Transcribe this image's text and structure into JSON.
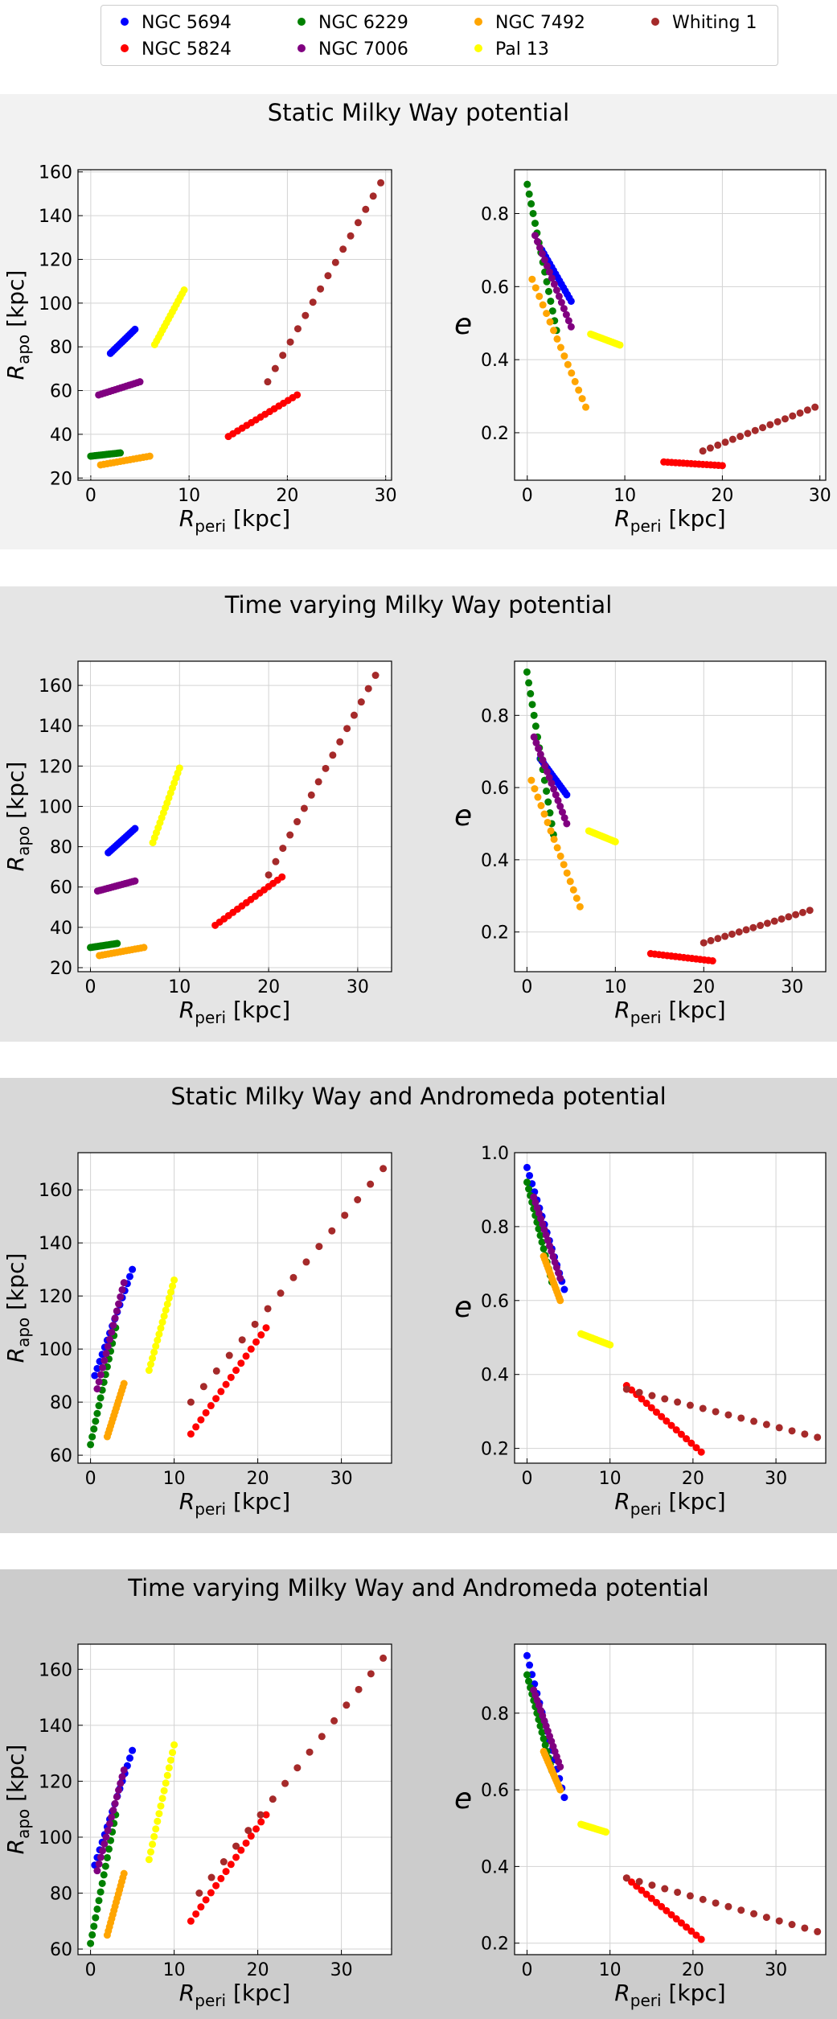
{
  "legend": [
    {
      "label": "NGC 5694",
      "color": "#0000ff"
    },
    {
      "label": "NGC 5824",
      "color": "#ff0000"
    },
    {
      "label": "NGC 6229",
      "color": "#008000"
    },
    {
      "label": "NGC 7006",
      "color": "#800080"
    },
    {
      "label": "NGC 7492",
      "color": "#ffa500"
    },
    {
      "label": "Pal 13",
      "color": "#ffff00"
    },
    {
      "label": "Whiting 1",
      "color": "#a52a2a"
    }
  ],
  "axis_labels": {
    "xlabel": "R_peri [kpc]",
    "ylabel_left": "R_apo [kpc]",
    "ylabel_right": "e"
  },
  "chart_data": [
    {
      "title": "Static Milky Way potential",
      "panel_bg": "#f2f2f2",
      "type": "scatter",
      "left": {
        "xlim": [
          -1.3,
          30.6
        ],
        "ylim": [
          19,
          161
        ],
        "xticks": [
          0,
          10,
          20,
          30
        ],
        "yticks": [
          20,
          40,
          60,
          80,
          100,
          120,
          140,
          160
        ],
        "series": {
          "NGC 5694": {
            "x": [
              2,
              4.5
            ],
            "y": [
              77,
              88
            ]
          },
          "NGC 5824": {
            "x": [
              14,
              21
            ],
            "y": [
              39,
              58
            ]
          },
          "NGC 6229": {
            "x": [
              0,
              3
            ],
            "y": [
              30,
              31.5
            ]
          },
          "NGC 7006": {
            "x": [
              0.8,
              5
            ],
            "y": [
              58,
              64
            ]
          },
          "NGC 7492": {
            "x": [
              1,
              6
            ],
            "y": [
              26,
              30
            ]
          },
          "Pal 13": {
            "x": [
              6.5,
              9.5
            ],
            "y": [
              81,
              106
            ]
          },
          "Whiting 1": {
            "x": [
              18,
              29.5
            ],
            "y": [
              64,
              155
            ]
          }
        }
      },
      "right": {
        "xlim": [
          -1.3,
          30.6
        ],
        "ylim": [
          0.07,
          0.92
        ],
        "xticks": [
          0,
          10,
          20,
          30
        ],
        "yticks": [
          0.2,
          0.4,
          0.6,
          0.8
        ],
        "series": {
          "NGC 5694": {
            "x": [
              1.5,
              4.5
            ],
            "y": [
              0.7,
              0.56
            ]
          },
          "NGC 5824": {
            "x": [
              14,
              20
            ],
            "y": [
              0.12,
              0.11
            ]
          },
          "NGC 6229": {
            "x": [
              0,
              3
            ],
            "y": [
              0.88,
              0.48
            ]
          },
          "NGC 7006": {
            "x": [
              0.8,
              4.5
            ],
            "y": [
              0.74,
              0.49
            ]
          },
          "NGC 7492": {
            "x": [
              0.5,
              6
            ],
            "y": [
              0.62,
              0.27
            ]
          },
          "Pal 13": {
            "x": [
              6.5,
              9.5
            ],
            "y": [
              0.47,
              0.44
            ]
          },
          "Whiting 1": {
            "x": [
              18,
              29.5
            ],
            "y": [
              0.15,
              0.27
            ]
          }
        }
      }
    },
    {
      "title": "Time varying Milky Way potential",
      "panel_bg": "#e5e5e5",
      "type": "scatter",
      "left": {
        "xlim": [
          -1.4,
          33.8
        ],
        "ylim": [
          18,
          172
        ],
        "xticks": [
          0,
          10,
          20,
          30
        ],
        "yticks": [
          20,
          40,
          60,
          80,
          100,
          120,
          140,
          160
        ],
        "series": {
          "NGC 5694": {
            "x": [
              2,
              5
            ],
            "y": [
              77,
              89
            ]
          },
          "NGC 5824": {
            "x": [
              14,
              21.5
            ],
            "y": [
              41,
              65
            ]
          },
          "NGC 6229": {
            "x": [
              0,
              3
            ],
            "y": [
              30,
              32
            ]
          },
          "NGC 7006": {
            "x": [
              0.8,
              5
            ],
            "y": [
              58,
              63
            ]
          },
          "NGC 7492": {
            "x": [
              1,
              6
            ],
            "y": [
              26,
              30
            ]
          },
          "Pal 13": {
            "x": [
              7,
              10
            ],
            "y": [
              82,
              119
            ]
          },
          "Whiting 1": {
            "x": [
              20,
              32
            ],
            "y": [
              66,
              165
            ]
          }
        }
      },
      "right": {
        "xlim": [
          -1.4,
          33.8
        ],
        "ylim": [
          0.09,
          0.95
        ],
        "xticks": [
          0,
          10,
          20,
          30
        ],
        "yticks": [
          0.2,
          0.4,
          0.6,
          0.8
        ],
        "series": {
          "NGC 5694": {
            "x": [
              1.5,
              4.5
            ],
            "y": [
              0.68,
              0.58
            ]
          },
          "NGC 5824": {
            "x": [
              14,
              21
            ],
            "y": [
              0.14,
              0.12
            ]
          },
          "NGC 6229": {
            "x": [
              0,
              3
            ],
            "y": [
              0.92,
              0.47
            ]
          },
          "NGC 7006": {
            "x": [
              0.8,
              4.5
            ],
            "y": [
              0.74,
              0.5
            ]
          },
          "NGC 7492": {
            "x": [
              0.5,
              6
            ],
            "y": [
              0.62,
              0.27
            ]
          },
          "Pal 13": {
            "x": [
              7,
              10
            ],
            "y": [
              0.48,
              0.45
            ]
          },
          "Whiting 1": {
            "x": [
              20,
              32
            ],
            "y": [
              0.17,
              0.26
            ]
          }
        }
      }
    },
    {
      "title": "Static Milky Way and Andromeda potential",
      "panel_bg": "#d8d8d8",
      "type": "scatter",
      "left": {
        "xlim": [
          -1.5,
          36
        ],
        "ylim": [
          57,
          174
        ],
        "xticks": [
          0,
          10,
          20,
          30
        ],
        "yticks": [
          60,
          80,
          100,
          120,
          140,
          160
        ],
        "series": {
          "NGC 5694": {
            "x": [
              0.5,
              5
            ],
            "y": [
              90,
              130
            ]
          },
          "NGC 5824": {
            "x": [
              12,
              21
            ],
            "y": [
              68,
              108
            ]
          },
          "NGC 6229": {
            "x": [
              0,
              3
            ],
            "y": [
              64,
              108
            ]
          },
          "NGC 7006": {
            "x": [
              0.8,
              4
            ],
            "y": [
              85,
              125
            ]
          },
          "NGC 7492": {
            "x": [
              2,
              4
            ],
            "y": [
              67,
              87
            ]
          },
          "Pal 13": {
            "x": [
              7,
              10
            ],
            "y": [
              92,
              126
            ]
          },
          "Whiting 1": {
            "x": [
              12,
              35
            ],
            "y": [
              80,
              168
            ]
          }
        }
      },
      "right": {
        "xlim": [
          -1.5,
          36
        ],
        "ylim": [
          0.16,
          1.0
        ],
        "xticks": [
          0,
          10,
          20,
          30
        ],
        "yticks": [
          0.2,
          0.4,
          0.6,
          0.8,
          1.0
        ],
        "series": {
          "NGC 5694": {
            "x": [
              0,
              4.5
            ],
            "y": [
              0.96,
              0.63
            ]
          },
          "NGC 5824": {
            "x": [
              12,
              21
            ],
            "y": [
              0.37,
              0.19
            ]
          },
          "NGC 6229": {
            "x": [
              0,
              3
            ],
            "y": [
              0.92,
              0.65
            ]
          },
          "NGC 7006": {
            "x": [
              0.8,
              4
            ],
            "y": [
              0.88,
              0.66
            ]
          },
          "NGC 7492": {
            "x": [
              2,
              4
            ],
            "y": [
              0.72,
              0.6
            ]
          },
          "Pal 13": {
            "x": [
              6.5,
              10
            ],
            "y": [
              0.51,
              0.48
            ]
          },
          "Whiting 1": {
            "x": [
              12,
              35
            ],
            "y": [
              0.36,
              0.23
            ]
          }
        }
      }
    },
    {
      "title": "Time varying Milky Way and Andromeda potential",
      "panel_bg": "#cccccc",
      "type": "scatter",
      "left": {
        "xlim": [
          -1.5,
          36
        ],
        "ylim": [
          58,
          169
        ],
        "xticks": [
          0,
          10,
          20,
          30
        ],
        "yticks": [
          60,
          80,
          100,
          120,
          140,
          160
        ],
        "series": {
          "NGC 5694": {
            "x": [
              0.5,
              5
            ],
            "y": [
              90,
              131
            ]
          },
          "NGC 5824": {
            "x": [
              12,
              21
            ],
            "y": [
              70,
              108
            ]
          },
          "NGC 6229": {
            "x": [
              0,
              3
            ],
            "y": [
              62,
              108
            ]
          },
          "NGC 7006": {
            "x": [
              0.8,
              4
            ],
            "y": [
              88,
              124
            ]
          },
          "NGC 7492": {
            "x": [
              2,
              4
            ],
            "y": [
              65,
              87
            ]
          },
          "Pal 13": {
            "x": [
              7,
              10
            ],
            "y": [
              92,
              133
            ]
          },
          "Whiting 1": {
            "x": [
              13,
              35
            ],
            "y": [
              80,
              164
            ]
          }
        }
      },
      "right": {
        "xlim": [
          -1.5,
          36
        ],
        "ylim": [
          0.17,
          0.98
        ],
        "xticks": [
          0,
          10,
          20,
          30
        ],
        "yticks": [
          0.2,
          0.4,
          0.6,
          0.8
        ],
        "series": {
          "NGC 5694": {
            "x": [
              0,
              4.5
            ],
            "y": [
              0.95,
              0.58
            ]
          },
          "NGC 5824": {
            "x": [
              12,
              21
            ],
            "y": [
              0.37,
              0.21
            ]
          },
          "NGC 6229": {
            "x": [
              0,
              3
            ],
            "y": [
              0.9,
              0.65
            ]
          },
          "NGC 7006": {
            "x": [
              0.8,
              4
            ],
            "y": [
              0.86,
              0.66
            ]
          },
          "NGC 7492": {
            "x": [
              2,
              4
            ],
            "y": [
              0.7,
              0.6
            ]
          },
          "Pal 13": {
            "x": [
              6.5,
              9.5
            ],
            "y": [
              0.51,
              0.49
            ]
          },
          "Whiting 1": {
            "x": [
              12,
              35
            ],
            "y": [
              0.37,
              0.23
            ]
          }
        }
      }
    }
  ]
}
